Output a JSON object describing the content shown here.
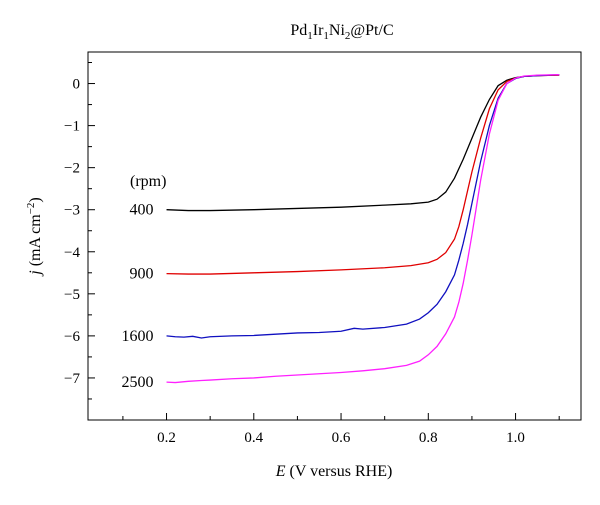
{
  "chart_data": {
    "type": "line",
    "title": {
      "base": "Pd",
      "parts": [
        {
          "t": "Pd",
          "sub": "1"
        },
        {
          "t": "Ir",
          "sub": "1"
        },
        {
          "t": "Ni",
          "sub": "2"
        },
        {
          "t": "@Pt/C",
          "sub": ""
        }
      ]
    },
    "xlabel": {
      "italic": "E",
      "rest": " (V versus RHE)"
    },
    "ylabel": {
      "italic": "j",
      "rest": " (mA cm",
      "sup": "−2",
      "close": ")"
    },
    "xlim": [
      0.02,
      1.15
    ],
    "ylim": [
      -8.0,
      0.75
    ],
    "xticks": [
      {
        "v": 0.2,
        "label": "0.2"
      },
      {
        "v": 0.4,
        "label": "0.4"
      },
      {
        "v": 0.6,
        "label": "0.6"
      },
      {
        "v": 0.8,
        "label": "0.8"
      },
      {
        "v": 1.0,
        "label": "1.0"
      }
    ],
    "yticks": [
      {
        "v": 0,
        "label": "0"
      },
      {
        "v": -1,
        "label": "−1"
      },
      {
        "v": -2,
        "label": "−2"
      },
      {
        "v": -3,
        "label": "−3"
      },
      {
        "v": -4,
        "label": "−4"
      },
      {
        "v": -5,
        "label": "−5"
      },
      {
        "v": -6,
        "label": "−6"
      },
      {
        "v": -7,
        "label": "−7"
      }
    ],
    "legend_header": "(rpm)",
    "series": [
      {
        "name": "400",
        "color": "#000000",
        "x": [
          0.2,
          0.25,
          0.3,
          0.4,
          0.5,
          0.6,
          0.7,
          0.76,
          0.8,
          0.82,
          0.84,
          0.86,
          0.88,
          0.9,
          0.92,
          0.94,
          0.96,
          0.98,
          1.0,
          1.02,
          1.05,
          1.1
        ],
        "y": [
          -3.0,
          -3.02,
          -3.02,
          -3.0,
          -2.97,
          -2.94,
          -2.89,
          -2.86,
          -2.82,
          -2.75,
          -2.58,
          -2.25,
          -1.8,
          -1.3,
          -0.8,
          -0.38,
          -0.05,
          0.08,
          0.14,
          0.17,
          0.19,
          0.2
        ]
      },
      {
        "name": "900",
        "color": "#e00000",
        "x": [
          0.2,
          0.25,
          0.3,
          0.4,
          0.5,
          0.6,
          0.7,
          0.76,
          0.8,
          0.82,
          0.84,
          0.86,
          0.87,
          0.88,
          0.89,
          0.9,
          0.92,
          0.94,
          0.96,
          0.98,
          1.0,
          1.02,
          1.05,
          1.1
        ],
        "y": [
          -4.52,
          -4.53,
          -4.53,
          -4.5,
          -4.47,
          -4.43,
          -4.38,
          -4.33,
          -4.26,
          -4.18,
          -4.02,
          -3.7,
          -3.4,
          -3.0,
          -2.55,
          -2.1,
          -1.3,
          -0.6,
          -0.15,
          0.05,
          0.13,
          0.17,
          0.19,
          0.2
        ]
      },
      {
        "name": "1600",
        "color": "#1010c0",
        "x": [
          0.2,
          0.22,
          0.24,
          0.26,
          0.28,
          0.3,
          0.35,
          0.4,
          0.45,
          0.5,
          0.55,
          0.6,
          0.63,
          0.65,
          0.7,
          0.75,
          0.78,
          0.8,
          0.82,
          0.84,
          0.86,
          0.87,
          0.88,
          0.89,
          0.9,
          0.91,
          0.92,
          0.94,
          0.96,
          0.98,
          1.0,
          1.02,
          1.05,
          1.1
        ],
        "y": [
          -6.0,
          -6.02,
          -6.03,
          -6.01,
          -6.05,
          -6.02,
          -6.0,
          -5.99,
          -5.96,
          -5.93,
          -5.92,
          -5.89,
          -5.82,
          -5.84,
          -5.8,
          -5.72,
          -5.6,
          -5.45,
          -5.25,
          -4.95,
          -4.55,
          -4.2,
          -3.8,
          -3.35,
          -2.85,
          -2.35,
          -1.85,
          -1.0,
          -0.35,
          0.0,
          0.12,
          0.17,
          0.19,
          0.21
        ]
      },
      {
        "name": "2500",
        "color": "#ff20ff",
        "x": [
          0.2,
          0.22,
          0.25,
          0.28,
          0.3,
          0.35,
          0.4,
          0.45,
          0.5,
          0.55,
          0.6,
          0.65,
          0.7,
          0.75,
          0.78,
          0.8,
          0.82,
          0.84,
          0.86,
          0.87,
          0.88,
          0.89,
          0.9,
          0.91,
          0.92,
          0.94,
          0.96,
          0.98,
          1.0,
          1.02,
          1.05,
          1.1
        ],
        "y": [
          -7.1,
          -7.11,
          -7.08,
          -7.06,
          -7.05,
          -7.02,
          -7.0,
          -6.96,
          -6.93,
          -6.9,
          -6.87,
          -6.83,
          -6.78,
          -6.7,
          -6.6,
          -6.45,
          -6.25,
          -5.95,
          -5.55,
          -5.2,
          -4.75,
          -4.2,
          -3.6,
          -2.95,
          -2.3,
          -1.2,
          -0.4,
          0.0,
          0.13,
          0.18,
          0.2,
          0.21
        ]
      }
    ]
  }
}
